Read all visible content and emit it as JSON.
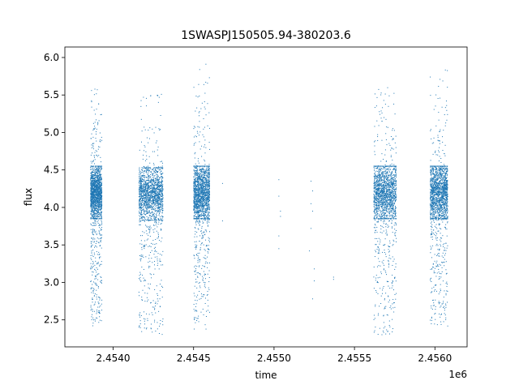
{
  "chart_data": {
    "type": "scatter",
    "title": "1SWASPJ150505.94-380203.6",
    "xlabel": "time",
    "ylabel": "flux",
    "x_offset_label": "1e6",
    "xlim": [
      2.4537,
      2.4562
    ],
    "ylim": [
      2.14,
      6.14
    ],
    "x_ticks": [
      2.454,
      2.4545,
      2.455,
      2.4555,
      2.456
    ],
    "x_tick_labels": [
      "2.4540",
      "2.4545",
      "2.4550",
      "2.4555",
      "2.4560"
    ],
    "y_ticks": [
      2.5,
      3.0,
      3.5,
      4.0,
      4.5,
      5.0,
      5.5,
      6.0
    ],
    "y_tick_labels": [
      "2.5",
      "3.0",
      "3.5",
      "4.0",
      "4.5",
      "5.0",
      "5.5",
      "6.0"
    ],
    "grid": false,
    "marker_color": "#1f77b4",
    "observing_seasons": [
      {
        "x_start": 2.45386,
        "x_end": 2.45393,
        "flux_median": 4.2,
        "flux_core_spread": 0.18,
        "flux_min": 2.42,
        "flux_max": 5.6
      },
      {
        "x_start": 2.45416,
        "x_end": 2.45431,
        "flux_median": 4.18,
        "flux_core_spread": 0.18,
        "flux_min": 2.3,
        "flux_max": 5.52
      },
      {
        "x_start": 2.4545,
        "x_end": 2.4546,
        "flux_median": 4.2,
        "flux_core_spread": 0.2,
        "flux_min": 2.35,
        "flux_max": 5.95
      },
      {
        "x_start": 2.45562,
        "x_end": 2.45576,
        "flux_median": 4.2,
        "flux_core_spread": 0.2,
        "flux_min": 2.3,
        "flux_max": 5.65
      },
      {
        "x_start": 2.45597,
        "x_end": 2.45608,
        "flux_median": 4.2,
        "flux_core_spread": 0.2,
        "flux_min": 2.4,
        "flux_max": 5.85
      }
    ],
    "sparse_points": [
      {
        "x": 2.45468,
        "y": 4.32
      },
      {
        "x": 2.45468,
        "y": 3.82
      },
      {
        "x": 2.45503,
        "y": 4.37
      },
      {
        "x": 2.45503,
        "y": 4.15
      },
      {
        "x": 2.45504,
        "y": 3.95
      },
      {
        "x": 2.45504,
        "y": 3.88
      },
      {
        "x": 2.45503,
        "y": 3.62
      },
      {
        "x": 2.45503,
        "y": 3.45
      },
      {
        "x": 2.45523,
        "y": 4.35
      },
      {
        "x": 2.45524,
        "y": 4.22
      },
      {
        "x": 2.45523,
        "y": 4.05
      },
      {
        "x": 2.45524,
        "y": 3.95
      },
      {
        "x": 2.45523,
        "y": 3.72
      },
      {
        "x": 2.45522,
        "y": 3.42
      },
      {
        "x": 2.45525,
        "y": 3.18
      },
      {
        "x": 2.45525,
        "y": 3.02
      },
      {
        "x": 2.45524,
        "y": 2.78
      },
      {
        "x": 2.45537,
        "y": 3.07
      },
      {
        "x": 2.45537,
        "y": 3.04
      }
    ]
  }
}
